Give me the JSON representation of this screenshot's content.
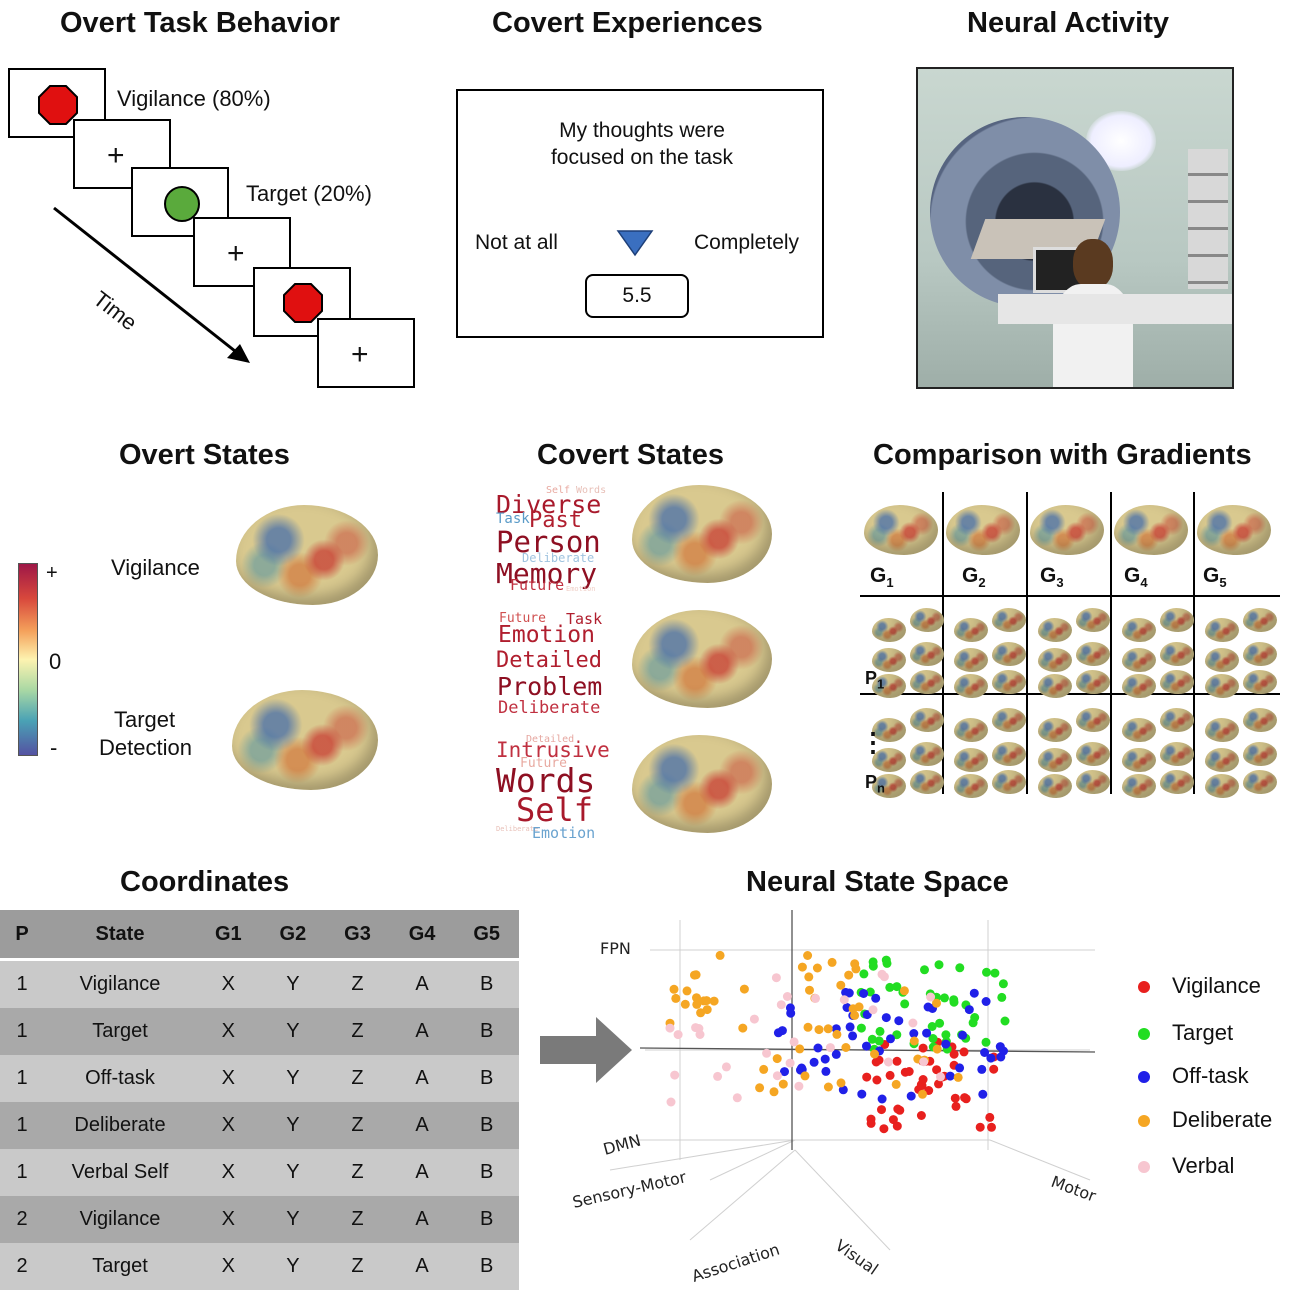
{
  "panels": {
    "overt_task": {
      "title": "Overt Task Behavior",
      "vigilance_label": "Vigilance (80%)",
      "target_label": "Target (20%)",
      "time_label": "Time",
      "fixation": "+"
    },
    "covert_exp": {
      "title": "Covert Experiences",
      "question": "My thoughts were focused on the task",
      "left_anchor": "Not at all",
      "right_anchor": "Completely",
      "value": "5.5"
    },
    "neural_activity": {
      "title": "Neural Activity"
    },
    "overt_states": {
      "title": "Overt States",
      "colorbar_plus": "+",
      "colorbar_zero": "0",
      "colorbar_minus": "-",
      "state1": "Vigilance",
      "state2_line1": "Target",
      "state2_line2": "Detection"
    },
    "covert_states": {
      "title": "Covert States",
      "cloud1": [
        {
          "w": "Self",
          "c": "#e8a9a0"
        },
        {
          "w": "Words",
          "c": "#e8c0b8"
        },
        {
          "w": "Diverse",
          "c": "#a8192b"
        },
        {
          "w": "Task",
          "c": "#5a9bc8"
        },
        {
          "w": "Past",
          "c": "#b01e2e"
        },
        {
          "w": "Person",
          "c": "#8e0f22"
        },
        {
          "w": "Deliberate",
          "c": "#9fc3df"
        },
        {
          "w": "Memory",
          "c": "#8e0f22"
        },
        {
          "w": "Future",
          "c": "#c03040"
        },
        {
          "w": "Emotion",
          "c": "#f0d0c8"
        }
      ],
      "cloud2": [
        {
          "w": "Future",
          "c": "#d05050"
        },
        {
          "w": "Task",
          "c": "#b01e2e"
        },
        {
          "w": "Emotion",
          "c": "#b01e2e"
        },
        {
          "w": "Detailed",
          "c": "#b01e2e"
        },
        {
          "w": "Problem",
          "c": "#8e0f22"
        },
        {
          "w": "Deliberate",
          "c": "#c03040"
        }
      ],
      "cloud3": [
        {
          "w": "Detailed",
          "c": "#e6a7a0"
        },
        {
          "w": "Intrusive",
          "c": "#c03040"
        },
        {
          "w": "Future",
          "c": "#e8a9a0"
        },
        {
          "w": "Words",
          "c": "#8e0f22"
        },
        {
          "w": "Self",
          "c": "#a8192b"
        },
        {
          "w": "Deliberate",
          "c": "#e8c0b8"
        },
        {
          "w": "Emotion",
          "c": "#6aa3cf"
        }
      ]
    },
    "gradients": {
      "title": "Comparison with Gradients",
      "g_labels": [
        "G",
        "G",
        "G",
        "G",
        "G"
      ],
      "g_subs": [
        "1",
        "2",
        "3",
        "4",
        "5"
      ],
      "p1": "P",
      "p1_sub": "1",
      "pn": "P",
      "pn_sub": "n",
      "ellipsis": "⋮"
    },
    "coordinates": {
      "title": "Coordinates",
      "headers": [
        "P",
        "State",
        "G1",
        "G2",
        "G3",
        "G4",
        "G5"
      ],
      "rows": [
        [
          "1",
          "Vigilance",
          "X",
          "Y",
          "Z",
          "A",
          "B"
        ],
        [
          "1",
          "Target",
          "X",
          "Y",
          "Z",
          "A",
          "B"
        ],
        [
          "1",
          "Off-task",
          "X",
          "Y",
          "Z",
          "A",
          "B"
        ],
        [
          "1",
          "Deliberate",
          "X",
          "Y",
          "Z",
          "A",
          "B"
        ],
        [
          "1",
          "Verbal Self",
          "X",
          "Y",
          "Z",
          "A",
          "B"
        ],
        [
          "2",
          "Vigilance",
          "X",
          "Y",
          "Z",
          "A",
          "B"
        ],
        [
          "2",
          "Target",
          "X",
          "Y",
          "Z",
          "A",
          "B"
        ]
      ]
    },
    "state_space": {
      "title": "Neural State Space",
      "axis_fpn": "FPN",
      "axis_dmn": "DMN",
      "axis_sensory": "Sensory-Motor",
      "axis_association": "Association",
      "axis_visual": "Visual",
      "axis_motor": "Motor",
      "legend": [
        {
          "name": "Vigilance",
          "color": "#e8201e"
        },
        {
          "name": "Target",
          "color": "#22dd22"
        },
        {
          "name": "Off-task",
          "color": "#2020e8"
        },
        {
          "name": "Deliberate",
          "color": "#f5a623"
        },
        {
          "name": "Verbal",
          "color": "#f7c6d0"
        }
      ]
    }
  },
  "colors": {
    "stop_red": "#e01010",
    "go_green": "#5aaa3c",
    "triangle_blue": "#3a6fc0"
  }
}
